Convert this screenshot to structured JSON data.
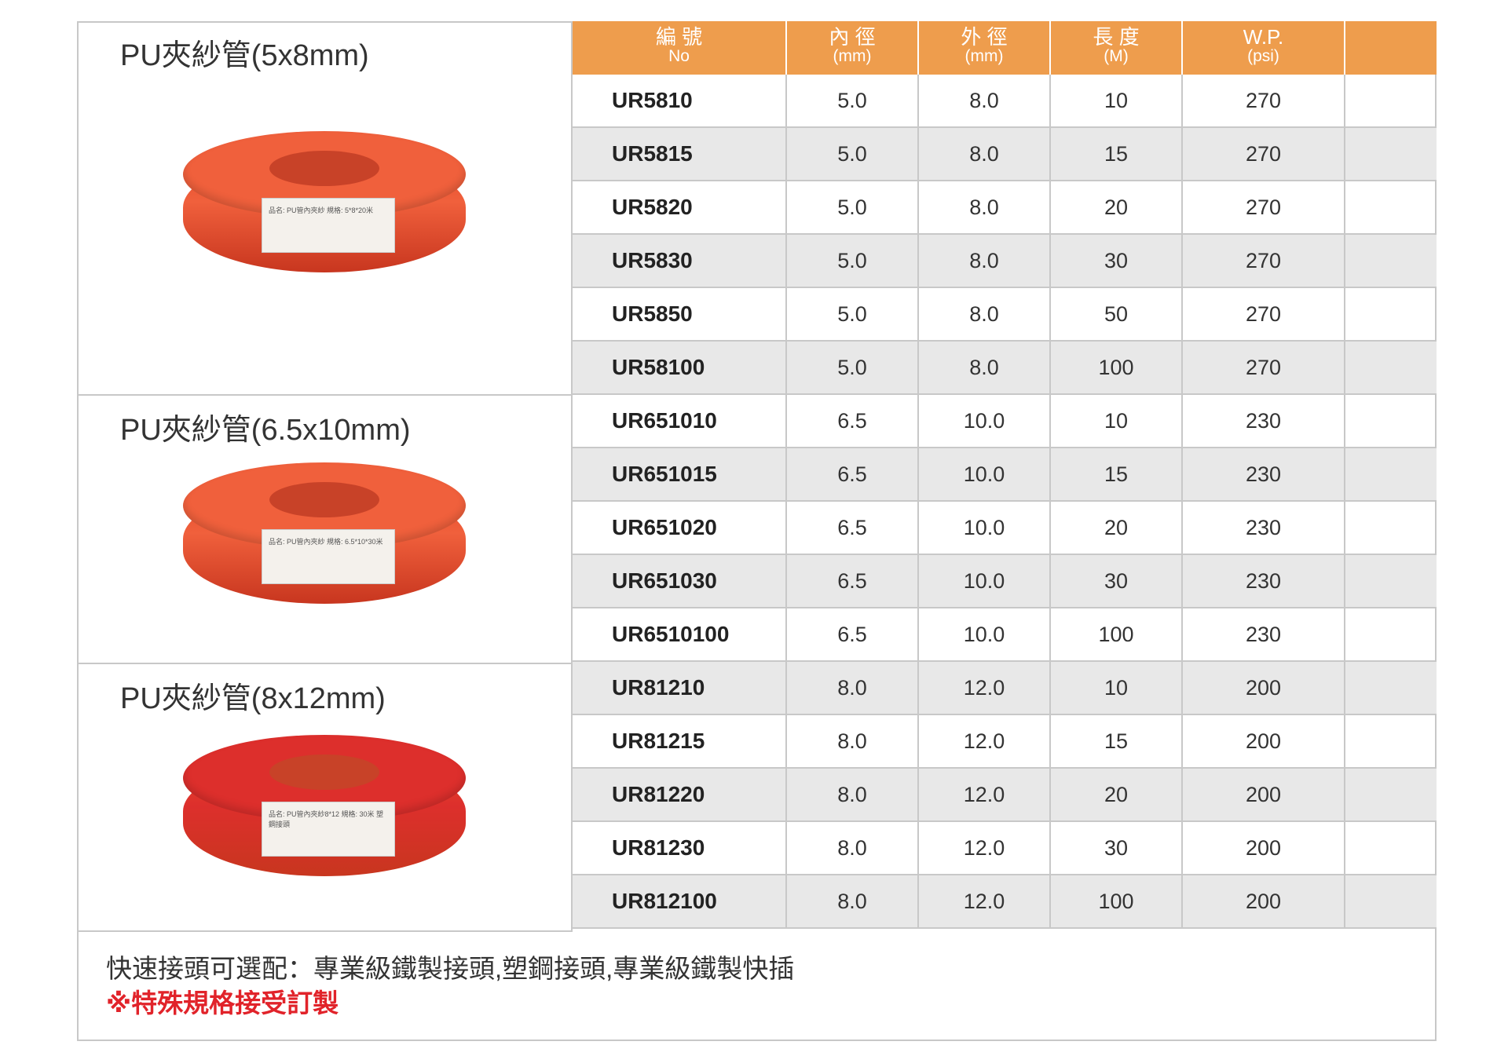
{
  "groups": [
    {
      "title": "PU夾紗管(5x8mm)",
      "label": "品名: PU管內夾紗 規格: 5*8*20米",
      "color": "#f0603c"
    },
    {
      "title": "PU夾紗管(6.5x10mm)",
      "label": "品名: PU管內夾紗 規格: 6.5*10*30米",
      "color": "#f0603c"
    },
    {
      "title": "PU夾紗管(8x12mm)",
      "label": "品名: PU管內夾紗8*12 規格: 30米 塑鋼接頭",
      "color": "#dd2f2c"
    }
  ],
  "header": [
    {
      "zh": "編 號",
      "en": "No"
    },
    {
      "zh": "內 徑",
      "en": "(mm)"
    },
    {
      "zh": "外 徑",
      "en": "(mm)"
    },
    {
      "zh": "長 度",
      "en": "(M)"
    },
    {
      "zh": "W.P.",
      "en": "(psi)"
    }
  ],
  "rows": [
    [
      "UR5810",
      "5.0",
      "8.0",
      "10",
      "270"
    ],
    [
      "UR5815",
      "5.0",
      "8.0",
      "15",
      "270"
    ],
    [
      "UR5820",
      "5.0",
      "8.0",
      "20",
      "270"
    ],
    [
      "UR5830",
      "5.0",
      "8.0",
      "30",
      "270"
    ],
    [
      "UR5850",
      "5.0",
      "8.0",
      "50",
      "270"
    ],
    [
      "UR58100",
      "5.0",
      "8.0",
      "100",
      "270"
    ],
    [
      "UR651010",
      "6.5",
      "10.0",
      "10",
      "230"
    ],
    [
      "UR651015",
      "6.5",
      "10.0",
      "15",
      "230"
    ],
    [
      "UR651020",
      "6.5",
      "10.0",
      "20",
      "230"
    ],
    [
      "UR651030",
      "6.5",
      "10.0",
      "30",
      "230"
    ],
    [
      "UR6510100",
      "6.5",
      "10.0",
      "100",
      "230"
    ],
    [
      "UR81210",
      "8.0",
      "12.0",
      "10",
      "200"
    ],
    [
      "UR81215",
      "8.0",
      "12.0",
      "15",
      "200"
    ],
    [
      "UR81220",
      "8.0",
      "12.0",
      "20",
      "200"
    ],
    [
      "UR81230",
      "8.0",
      "12.0",
      "30",
      "200"
    ],
    [
      "UR812100",
      "8.0",
      "12.0",
      "100",
      "200"
    ]
  ],
  "footer": {
    "line1": "快速接頭可選配：專業級鐵製接頭,塑鋼接頭,專業級鐵製快插",
    "line2": "※特殊規格接受訂製"
  },
  "colors": {
    "header": "#ee9d4d",
    "note": "#e1232a"
  }
}
